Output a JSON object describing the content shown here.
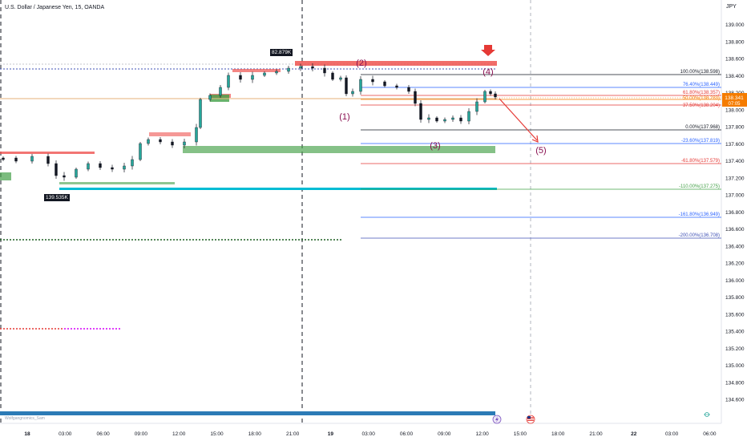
{
  "header": {
    "title": "U.S. Dollar / Japanese Yen, 15, OANDA",
    "currency_unit": "JPY"
  },
  "watermark": "Wolfgangnomics_Sam",
  "price_axis": {
    "ticks": [
      "139.000",
      "138.800",
      "138.600",
      "138.400",
      "138.200",
      "138.000",
      "137.800",
      "137.600",
      "137.400",
      "137.200",
      "137.000",
      "136.800",
      "136.600",
      "136.400",
      "136.200",
      "136.000",
      "135.800",
      "135.600",
      "135.400",
      "135.200",
      "135.000",
      "134.800",
      "134.600"
    ],
    "current_price": "138.341",
    "countdown": "07:05",
    "current_price_color": "#f57c00"
  },
  "time_axis": {
    "ticks": [
      "18",
      "03:00",
      "06:00",
      "09:00",
      "12:00",
      "15:00",
      "18:00",
      "21:00",
      "19",
      "03:00",
      "06:00",
      "09:00",
      "12:00",
      "15:00",
      "18:00",
      "21:00",
      "22",
      "03:00",
      "06:00"
    ]
  },
  "price_tags": {
    "high": "82.879K",
    "low": "139.535K"
  },
  "wave_labels": [
    "(1)",
    "(2)",
    "(3)",
    "(4)",
    "(5)"
  ],
  "fib_levels": [
    {
      "label": "100.00%(138.598)",
      "color": "#131722"
    },
    {
      "label": "76.40%(138.449)",
      "color": "#2962ff"
    },
    {
      "label": "61.80%(138.357)",
      "color": "#e53935"
    },
    {
      "label": "50.00%(138.283)",
      "color": "#f57c00"
    },
    {
      "label": "37.50%(138.204)",
      "color": "#e53935"
    },
    {
      "label": "0.00%(137.968)",
      "color": "#131722"
    },
    {
      "label": "-23.60%(137.819)",
      "color": "#2962ff"
    },
    {
      "label": "-61.80%(137.579)",
      "color": "#e53935"
    },
    {
      "label": "-110.00%(137.275)",
      "color": "#43a047"
    },
    {
      "label": "-161.80%(136.949)",
      "color": "#2962ff"
    },
    {
      "label": "-200.00%(136.708)",
      "color": "#3f51b5"
    }
  ],
  "colors": {
    "bull": "#26a69a",
    "bear": "#ef5350",
    "candle": "#131722",
    "supply_zone": "#ef5350",
    "demand_zone": "#43a047",
    "cyan_line": "#00bcd4",
    "blue_bar": "#2c7bb6",
    "arrow": "#e53935",
    "wave_label": "#880e4f"
  },
  "icons": {
    "event_1": "lightning-icon",
    "event_2": "us-flag-icon",
    "settings": "chart-settings-icon",
    "drop_marker": "down-arrow-icon"
  }
}
